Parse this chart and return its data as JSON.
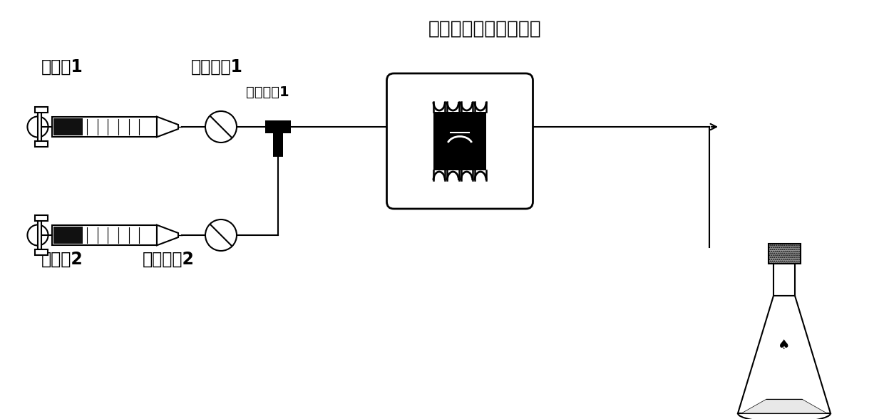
{
  "title": "电化学微通道反应装置",
  "label_injector1": "注射刨1",
  "label_injector2": "注射刨2",
  "label_inlet1": "物料进口1",
  "label_inlet2": "物料进口2",
  "label_mixer": "微混合刨1",
  "bg_color": "#ffffff",
  "line_color": "#000000"
}
